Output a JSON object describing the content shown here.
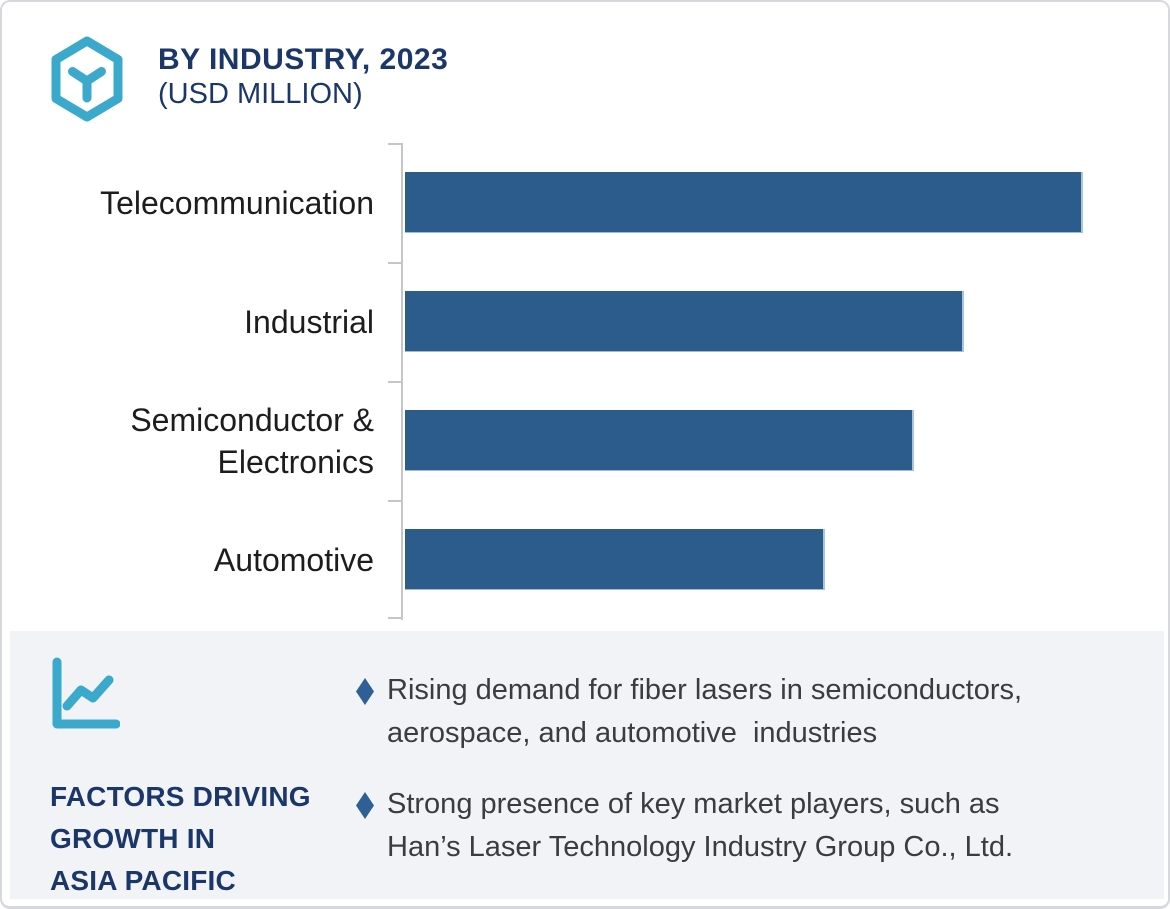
{
  "header": {
    "logo_icon": "hexagon-y-logo-icon",
    "title": "BY INDUSTRY, 2023",
    "subtitle": "(USD MILLION)"
  },
  "chart_data": {
    "type": "bar",
    "orientation": "horizontal",
    "title": "BY INDUSTRY, 2023 (USD MILLION)",
    "categories": [
      "Telecommunication",
      "Industrial",
      "Semiconductor & Electronics",
      "Automotive"
    ],
    "values": [
      100,
      82.5,
      75,
      62
    ],
    "value_note": "axis has no numeric labels; values estimated as relative bar lengths with longest bar = 100",
    "xlabel": "",
    "ylabel": "",
    "grid": false,
    "legend": false,
    "bar_color": "#2C5C8C",
    "axis_color": "#C5C6C9"
  },
  "factors_panel": {
    "icon": "line-chart-icon",
    "heading": "FACTORS DRIVING\nGROWTH IN\nASIA PACIFIC",
    "bullets": [
      {
        "marker": "diamond",
        "text": "Rising demand for fiber lasers in semiconductors,\naerospace, and automotive  industries"
      },
      {
        "marker": "diamond",
        "text": "Strong presence of key market players, such as\nHan’s Laser Technology Industry Group Co., Ltd."
      }
    ]
  },
  "colors": {
    "accent_teal": "#3BA9CB",
    "navy": "#1B3769",
    "bar_blue": "#2C5C8C",
    "bullet_blue": "#2E6095",
    "panel_background": "#F2F3F7",
    "body_text": "#3C3C3C",
    "card_border": "#D6D8DE"
  }
}
